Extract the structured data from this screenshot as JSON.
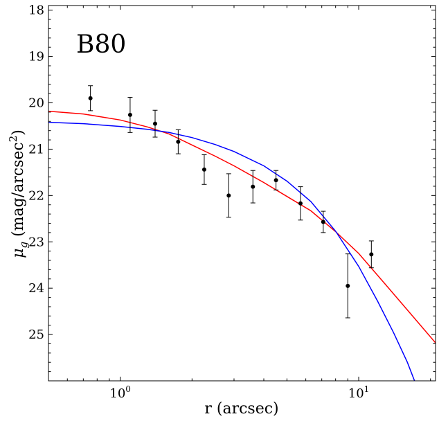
{
  "chart_data": {
    "type": "scatter",
    "annotation": "B80",
    "xlabel": "r (arcsec)",
    "ylabel_base": "μ",
    "ylabel_sub": "g",
    "ylabel_rest": " (mag/arcsec",
    "ylabel_sup": "2",
    "ylabel_close": ")",
    "x_scale": "log",
    "xlim": [
      0.5,
      21
    ],
    "ylim": [
      26.0,
      17.9
    ],
    "y_inverted": true,
    "x_ticks": [
      {
        "value": 1,
        "base": "10",
        "exp": "0"
      },
      {
        "value": 10,
        "base": "10",
        "exp": "1"
      }
    ],
    "y_ticks": [
      18,
      19,
      20,
      21,
      22,
      23,
      24,
      25
    ],
    "grid": false,
    "points": [
      {
        "x": 0.75,
        "y": 19.9,
        "err": 0.27
      },
      {
        "x": 1.1,
        "y": 20.26,
        "err": 0.38
      },
      {
        "x": 1.4,
        "y": 20.45,
        "err": 0.29
      },
      {
        "x": 1.75,
        "y": 20.84,
        "err": 0.26
      },
      {
        "x": 2.25,
        "y": 21.44,
        "err": 0.32
      },
      {
        "x": 2.85,
        "y": 22.0,
        "err": 0.47
      },
      {
        "x": 3.6,
        "y": 21.81,
        "err": 0.35
      },
      {
        "x": 4.5,
        "y": 21.67,
        "err": 0.21
      },
      {
        "x": 5.7,
        "y": 22.17,
        "err": 0.36
      },
      {
        "x": 7.1,
        "y": 22.57,
        "err": 0.23
      },
      {
        "x": 9.0,
        "y": 23.95,
        "err": 0.69
      },
      {
        "x": 11.3,
        "y": 23.27,
        "err": 0.29
      }
    ],
    "series": [
      {
        "color": "#ff0000",
        "x": [
          0.5,
          0.7,
          1.0,
          1.3,
          1.6,
          2.0,
          2.5,
          3.0,
          4.0,
          5.0,
          6.3,
          8.0,
          10.0,
          13.0,
          16.0,
          21.0
        ],
        "y": [
          20.18,
          20.24,
          20.37,
          20.52,
          20.67,
          20.91,
          21.15,
          21.36,
          21.72,
          22.02,
          22.33,
          22.78,
          23.25,
          23.93,
          24.47,
          25.18
        ]
      },
      {
        "color": "#0000ff",
        "x": [
          0.5,
          0.7,
          1.0,
          1.3,
          1.6,
          2.0,
          2.5,
          3.0,
          4.0,
          5.0,
          6.3,
          8.0,
          10.0,
          12.0,
          14.0,
          16.0,
          18.0,
          18.6
        ],
        "y": [
          20.42,
          20.45,
          20.51,
          20.57,
          20.64,
          20.75,
          20.9,
          21.05,
          21.36,
          21.69,
          22.13,
          22.77,
          23.53,
          24.28,
          24.96,
          25.6,
          26.28,
          26.5
        ]
      }
    ]
  }
}
